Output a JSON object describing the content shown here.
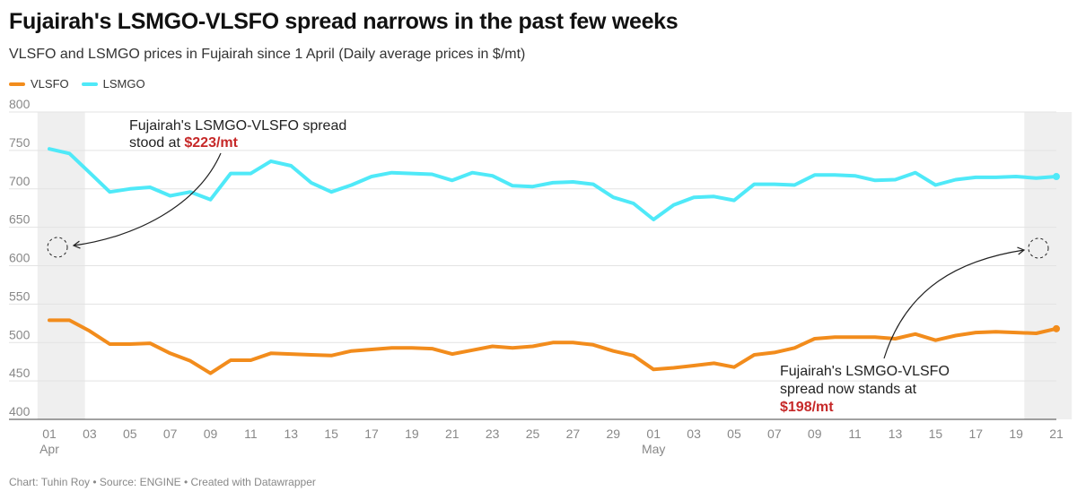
{
  "header": {
    "title": "Fujairah's LSMGO-VLSFO spread narrows in the past few weeks",
    "subtitle": "VLSFO and LSMGO prices in Fujairah since 1 April (Daily average prices in $/mt)"
  },
  "legend": [
    {
      "label": "VLSFO",
      "color": "#f28c1c"
    },
    {
      "label": "LSMGO",
      "color": "#4fe9f8"
    }
  ],
  "footer": {
    "credit": "Chart: Tuhin Roy • Source: ENGINE • Created with Datawrapper"
  },
  "annotations": {
    "start": {
      "line1": "Fujairah's LSMGO-VLSFO spread",
      "line2_prefix": "stood at ",
      "value": "$223/mt"
    },
    "end": {
      "line1": "Fujairah's LSMGO-VLSFO",
      "line2": "spread now stands at",
      "value": "$198/mt"
    }
  },
  "chart_data": {
    "type": "line",
    "title": "Fujairah's LSMGO-VLSFO spread narrows in the past few weeks",
    "subtitle": "VLSFO and LSMGO prices in Fujairah since 1 April (Daily average prices in $/mt)",
    "ylim": [
      400,
      800
    ],
    "y_ticks": [
      400,
      450,
      500,
      550,
      600,
      650,
      700,
      750,
      800
    ],
    "grid": true,
    "legend_position": "top-left",
    "x": [
      "Apr 01",
      "Apr 02",
      "Apr 03",
      "Apr 04",
      "Apr 05",
      "Apr 06",
      "Apr 07",
      "Apr 08",
      "Apr 09",
      "Apr 10",
      "Apr 11",
      "Apr 12",
      "Apr 13",
      "Apr 14",
      "Apr 15",
      "Apr 16",
      "Apr 17",
      "Apr 18",
      "Apr 19",
      "Apr 20",
      "Apr 21",
      "Apr 22",
      "Apr 23",
      "Apr 24",
      "Apr 25",
      "Apr 26",
      "Apr 27",
      "Apr 28",
      "Apr 29",
      "Apr 30",
      "May 01",
      "May 02",
      "May 03",
      "May 04",
      "May 05",
      "May 06",
      "May 07",
      "May 08",
      "May 09",
      "May 10",
      "May 11",
      "May 12",
      "May 13",
      "May 14",
      "May 15",
      "May 16",
      "May 17",
      "May 18",
      "May 19",
      "May 20",
      "May 21"
    ],
    "x_tick_labels": [
      {
        "day": "01",
        "month": "Apr"
      },
      {
        "day": "03"
      },
      {
        "day": "05"
      },
      {
        "day": "07"
      },
      {
        "day": "09"
      },
      {
        "day": "11"
      },
      {
        "day": "13"
      },
      {
        "day": "15"
      },
      {
        "day": "17"
      },
      {
        "day": "19"
      },
      {
        "day": "21"
      },
      {
        "day": "23"
      },
      {
        "day": "25"
      },
      {
        "day": "27"
      },
      {
        "day": "29"
      },
      {
        "day": "01",
        "month": "May"
      },
      {
        "day": "03"
      },
      {
        "day": "05"
      },
      {
        "day": "07"
      },
      {
        "day": "09"
      },
      {
        "day": "11"
      },
      {
        "day": "13"
      },
      {
        "day": "15"
      },
      {
        "day": "17"
      },
      {
        "day": "19"
      },
      {
        "day": "21"
      }
    ],
    "highlight_ranges": [
      [
        "Apr 01",
        "Apr 02"
      ],
      [
        "May 20",
        "May 21"
      ]
    ],
    "series": [
      {
        "name": "VLSFO",
        "color": "#f28c1c",
        "values": [
          529,
          529,
          515,
          498,
          498,
          499,
          486,
          476,
          460,
          477,
          477,
          486,
          485,
          484,
          483,
          489,
          491,
          493,
          493,
          492,
          485,
          490,
          495,
          493,
          495,
          500,
          500,
          497,
          489,
          483,
          465,
          467,
          470,
          473,
          468,
          484,
          487,
          493,
          505,
          507,
          507,
          507,
          505,
          511,
          503,
          509,
          513,
          514,
          513,
          512,
          518
        ]
      },
      {
        "name": "LSMGO",
        "color": "#4fe9f8",
        "values": [
          752,
          746,
          721,
          696,
          700,
          702,
          691,
          696,
          686,
          720,
          720,
          736,
          730,
          708,
          696,
          705,
          716,
          721,
          720,
          719,
          711,
          721,
          717,
          704,
          703,
          708,
          709,
          706,
          689,
          681,
          660,
          679,
          689,
          690,
          685,
          706,
          706,
          705,
          718,
          718,
          717,
          711,
          712,
          721,
          705,
          712,
          715,
          715,
          716,
          714,
          716
        ]
      }
    ]
  }
}
